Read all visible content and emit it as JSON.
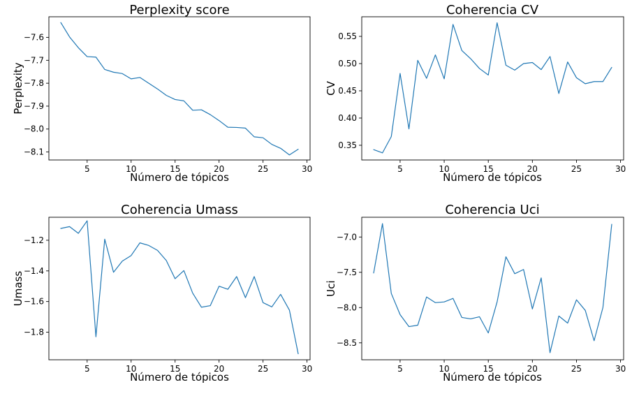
{
  "chart_data": [
    {
      "type": "line",
      "title": "Perplexity score",
      "xlabel": "Número de tópicos",
      "ylabel": "Perplexity",
      "xlim": [
        0.65,
        30.35
      ],
      "ylim": [
        -8.135,
        -7.51
      ],
      "xticks": [
        5,
        10,
        15,
        20,
        25,
        30
      ],
      "yticks": [
        -8.1,
        -8.0,
        -7.9,
        -7.8,
        -7.7,
        -7.6
      ],
      "ytick_labels": [
        "−8.1",
        "−8.0",
        "−7.9",
        "−7.8",
        "−7.7",
        "−7.6"
      ],
      "grid": false,
      "x": [
        2,
        3,
        4,
        5,
        6,
        7,
        8,
        9,
        10,
        11,
        12,
        13,
        14,
        15,
        16,
        17,
        18,
        19,
        20,
        21,
        22,
        23,
        24,
        25,
        26,
        27,
        28,
        29
      ],
      "series": [
        {
          "color": "#1f77b4",
          "values": [
            -7.535,
            -7.598,
            -7.645,
            -7.684,
            -7.686,
            -7.74,
            -7.752,
            -7.758,
            -7.781,
            -7.775,
            -7.8,
            -7.825,
            -7.853,
            -7.871,
            -7.877,
            -7.918,
            -7.916,
            -7.937,
            -7.963,
            -7.992,
            -7.993,
            -7.996,
            -8.034,
            -8.038,
            -8.067,
            -8.084,
            -8.113,
            -8.088
          ]
        }
      ]
    },
    {
      "type": "line",
      "title": "Coherencia CV",
      "xlabel": "Número de tópicos",
      "ylabel": "CV",
      "xlim": [
        0.65,
        30.35
      ],
      "ylim": [
        0.323,
        0.586
      ],
      "xticks": [
        5,
        10,
        15,
        20,
        25,
        30
      ],
      "yticks": [
        0.35,
        0.4,
        0.45,
        0.5,
        0.55
      ],
      "ytick_labels": [
        "0.35",
        "0.40",
        "0.45",
        "0.50",
        "0.55"
      ],
      "grid": false,
      "x": [
        2,
        3,
        4,
        5,
        6,
        7,
        8,
        9,
        10,
        11,
        12,
        13,
        14,
        15,
        16,
        17,
        18,
        19,
        20,
        21,
        22,
        23,
        24,
        25,
        26,
        27,
        28,
        29
      ],
      "series": [
        {
          "color": "#1f77b4",
          "values": [
            0.342,
            0.336,
            0.366,
            0.482,
            0.38,
            0.506,
            0.473,
            0.516,
            0.472,
            0.572,
            0.524,
            0.509,
            0.491,
            0.479,
            0.575,
            0.497,
            0.488,
            0.5,
            0.502,
            0.489,
            0.513,
            0.445,
            0.503,
            0.474,
            0.463,
            0.467,
            0.467,
            0.493
          ]
        }
      ]
    },
    {
      "type": "line",
      "title": "Coherencia Umass",
      "xlabel": "Número de tópicos",
      "ylabel": "Umass",
      "xlim": [
        0.65,
        30.35
      ],
      "ylim": [
        -1.98,
        -1.05
      ],
      "xticks": [
        5,
        10,
        15,
        20,
        25,
        30
      ],
      "yticks": [
        -1.8,
        -1.6,
        -1.4,
        -1.2
      ],
      "ytick_labels": [
        "−1.8",
        "−1.6",
        "−1.4",
        "−1.2"
      ],
      "grid": false,
      "x": [
        2,
        3,
        4,
        5,
        6,
        7,
        8,
        9,
        10,
        11,
        12,
        13,
        14,
        15,
        16,
        17,
        18,
        19,
        20,
        21,
        22,
        23,
        24,
        25,
        26,
        27,
        28,
        29
      ],
      "series": [
        {
          "color": "#1f77b4",
          "values": [
            -1.123,
            -1.111,
            -1.155,
            -1.073,
            -1.83,
            -1.193,
            -1.409,
            -1.336,
            -1.3,
            -1.217,
            -1.234,
            -1.266,
            -1.332,
            -1.451,
            -1.398,
            -1.545,
            -1.637,
            -1.627,
            -1.5,
            -1.52,
            -1.437,
            -1.575,
            -1.437,
            -1.607,
            -1.635,
            -1.553,
            -1.656,
            -1.941
          ]
        }
      ]
    },
    {
      "type": "line",
      "title": "Coherencia Uci",
      "xlabel": "Número de tópicos",
      "ylabel": "Uci",
      "xlim": [
        0.65,
        30.35
      ],
      "ylim": [
        -8.74,
        -6.72
      ],
      "xticks": [
        5,
        10,
        15,
        20,
        25,
        30
      ],
      "yticks": [
        -8.5,
        -8.0,
        -7.5,
        -7.0
      ],
      "ytick_labels": [
        "−8.5",
        "−8.0",
        "−7.5",
        "−7.0"
      ],
      "grid": false,
      "x": [
        2,
        3,
        4,
        5,
        6,
        7,
        8,
        9,
        10,
        11,
        12,
        13,
        14,
        15,
        16,
        17,
        18,
        19,
        20,
        21,
        22,
        23,
        24,
        25,
        26,
        27,
        28,
        29
      ],
      "series": [
        {
          "color": "#1f77b4",
          "values": [
            -7.51,
            -6.81,
            -7.8,
            -8.1,
            -8.27,
            -8.25,
            -7.85,
            -7.93,
            -7.92,
            -7.87,
            -8.14,
            -8.16,
            -8.13,
            -8.36,
            -7.92,
            -7.28,
            -7.52,
            -7.46,
            -8.02,
            -7.58,
            -8.64,
            -8.12,
            -8.22,
            -7.89,
            -8.04,
            -8.47,
            -8.0,
            -6.82
          ]
        }
      ]
    }
  ]
}
